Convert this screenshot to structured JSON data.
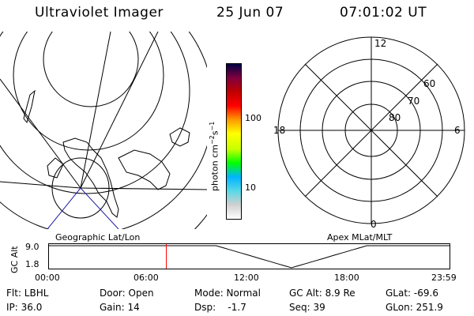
{
  "header": {
    "title": "Ultraviolet Imager",
    "date": "25 Jun 07",
    "time": "07:01:02 UT"
  },
  "geo_panel": {
    "label": "Geographic Lat/Lon"
  },
  "apex_panel": {
    "label": "Apex MLat/MLT",
    "mlt_labels": {
      "top": "12",
      "left": "18",
      "right": "6",
      "bottom": "0"
    },
    "lat_labels": [
      "60",
      "70",
      "80"
    ]
  },
  "colorbar": {
    "unit_prefix": "photon cm",
    "unit_exp1": "−2",
    "unit_mid": "s",
    "unit_exp2": "−1",
    "ticks": [
      "100",
      "10"
    ],
    "colors": [
      "#ffffff",
      "#d0d0d0",
      "#58d8e8",
      "#00b4ff",
      "#00ff00",
      "#c8ff00",
      "#ffff00",
      "#ff9900",
      "#ff0000",
      "#c00000",
      "#800040",
      "#000040"
    ]
  },
  "timeline": {
    "ylabel": "GC Alt",
    "y_ticks": [
      "9.0",
      "1.8"
    ],
    "x_ticks": [
      "00:00",
      "06:00",
      "12:00",
      "18:00",
      "23:59"
    ],
    "current_marker_hour": 7.017,
    "marker_color": "#ff0000"
  },
  "status": {
    "flt": "Flt: LBHL",
    "ip": "IP: 36.0",
    "door": "Door: Open",
    "gain": "Gain: 14",
    "mode": "Mode: Normal",
    "dsp": "Dsp:    -1.7",
    "gc_alt": "GC Alt: 8.9 Re",
    "seq": "Seq: 39",
    "glat": "GLat: -69.6",
    "glon": "GLon: 251.9"
  }
}
